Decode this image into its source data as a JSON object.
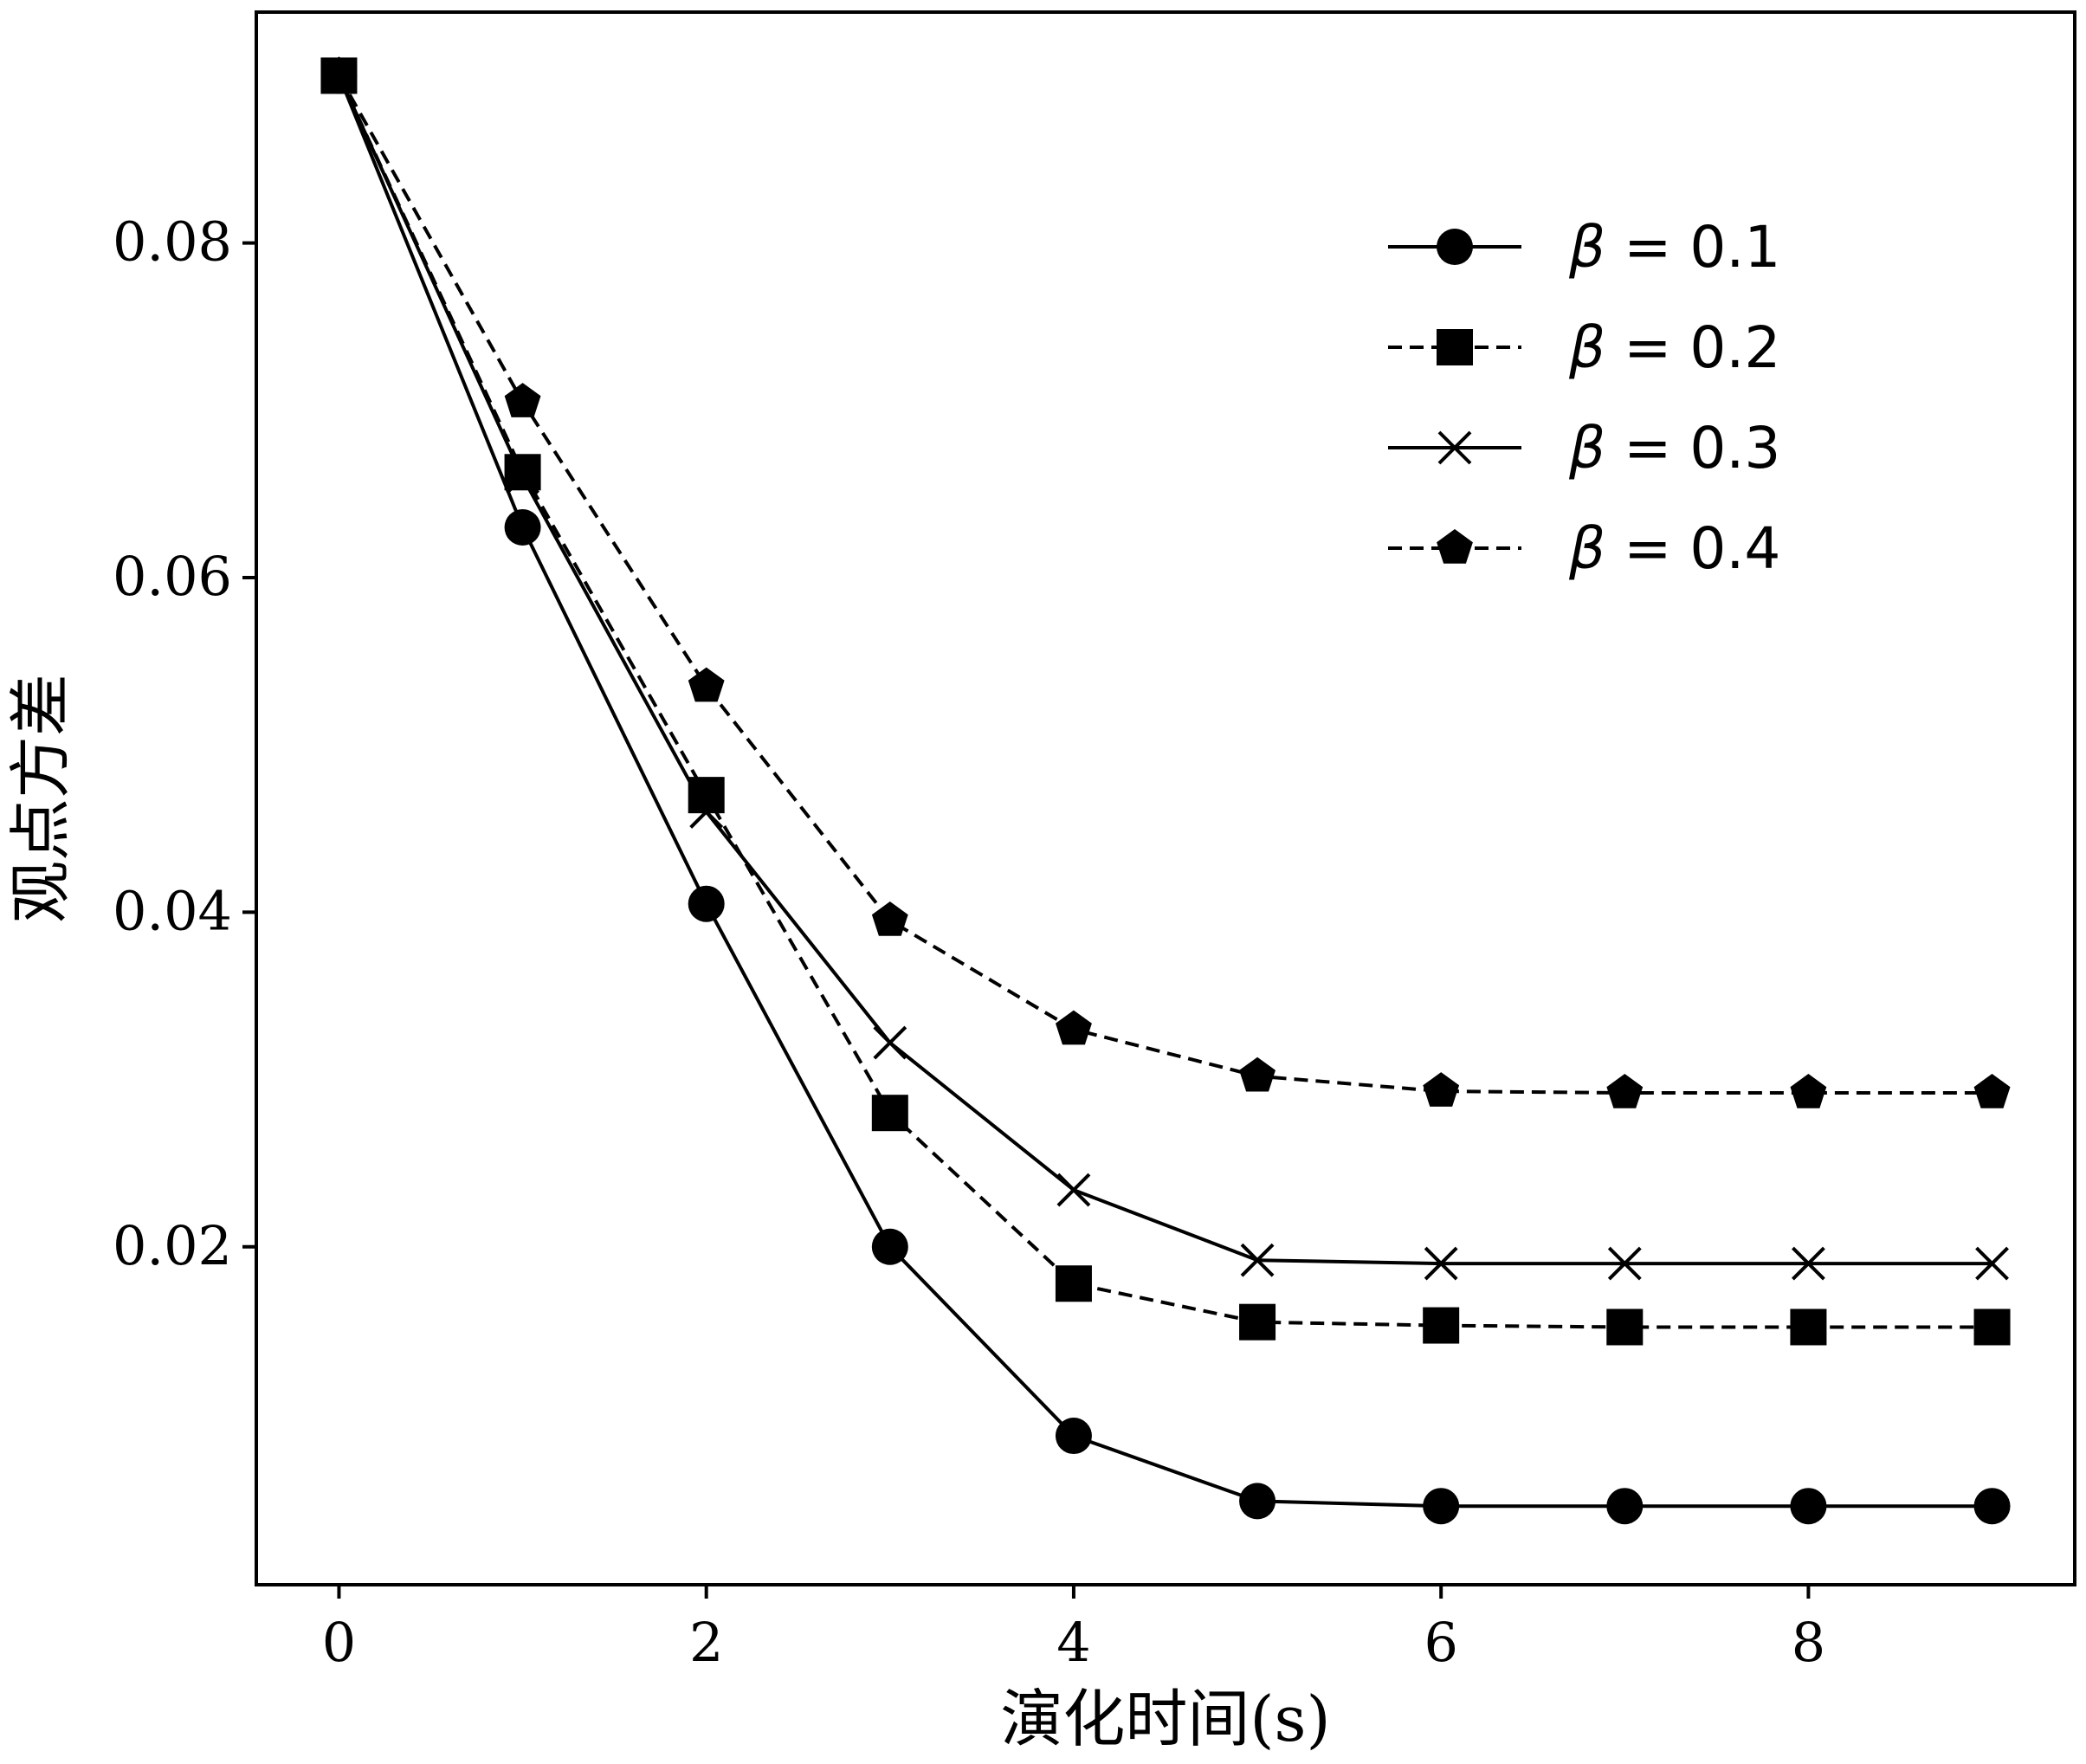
{
  "chart_data": {
    "type": "line",
    "xlabel": "演化时间(s)",
    "ylabel": "观点方差",
    "xlim": [
      -0.45,
      9.45
    ],
    "ylim": [
      -0.0002,
      0.0938
    ],
    "xticks": [
      0,
      2,
      4,
      6,
      8
    ],
    "xtick_labels": [
      "0",
      "2",
      "4",
      "6",
      "8"
    ],
    "yticks": [
      0.02,
      0.04,
      0.06,
      0.08
    ],
    "ytick_labels": [
      "0.02",
      "0.04",
      "0.06",
      "0.08"
    ],
    "grid": false,
    "legend_position": "top-right",
    "x": [
      0,
      1,
      2,
      3,
      4,
      5,
      6,
      7,
      8,
      9
    ],
    "series": [
      {
        "name_symbol": "β",
        "name_value": "= 0.1",
        "marker": "circle",
        "linestyle": "solid",
        "color": "#000000",
        "values": [
          0.09,
          0.063,
          0.0405,
          0.02,
          0.0087,
          0.0048,
          0.0045,
          0.0045,
          0.0045,
          0.0045
        ]
      },
      {
        "name_symbol": "β",
        "name_value": "= 0.2",
        "marker": "square",
        "linestyle": "dashed",
        "color": "#000000",
        "values": [
          0.09,
          0.0663,
          0.047,
          0.028,
          0.0178,
          0.0155,
          0.0153,
          0.0152,
          0.0152,
          0.0152
        ]
      },
      {
        "name_symbol": "β",
        "name_value": "= 0.3",
        "marker": "x",
        "linestyle": "solid",
        "color": "#000000",
        "values": [
          0.09,
          0.066,
          0.046,
          0.0322,
          0.0234,
          0.0192,
          0.019,
          0.019,
          0.019,
          0.019
        ]
      },
      {
        "name_symbol": "β",
        "name_value": "= 0.4",
        "marker": "pentagon",
        "linestyle": "dashed",
        "color": "#000000",
        "values": [
          0.09,
          0.0705,
          0.0535,
          0.0395,
          0.033,
          0.0302,
          0.0293,
          0.0292,
          0.0292,
          0.0292
        ]
      }
    ]
  }
}
